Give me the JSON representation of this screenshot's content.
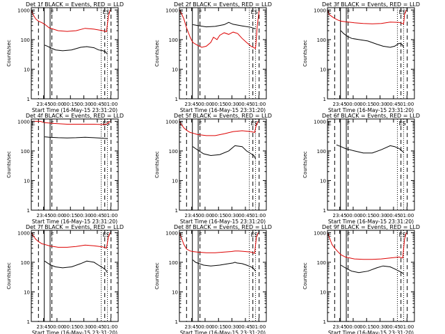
{
  "figure": {
    "x_tick_labels": [
      "23:45",
      "00:00",
      "00:15",
      "00:30",
      "00:45",
      "01:00"
    ],
    "y_tick_labels": [
      "1",
      "10",
      "100",
      "1000"
    ],
    "ylabel": "Counts/sec",
    "xlabel": "Start Time (16-May-15 23:31:20)",
    "marker_labels": [
      "E",
      "F",
      "ES"
    ],
    "black_color": "#000000",
    "red_color": "#dd0000"
  },
  "chart_data": [
    {
      "type": "line",
      "title": "Det 1f BLACK = Events, RED = LLD",
      "xlabel": "Start Time (16-May-15 23:31:20)",
      "ylabel": "Counts/sec",
      "x_unit": "minutes after 23:31:20",
      "xlim": [
        0,
        97
      ],
      "ylim": [
        1,
        1200
      ],
      "yscale": "log",
      "lld": true,
      "markers": [
        "E",
        "F",
        "ES"
      ],
      "series": [
        {
          "name": "Events",
          "color": "#000000",
          "x": [
            15,
            18,
            22,
            27,
            35,
            45,
            55,
            62,
            70,
            75,
            80,
            83,
            85
          ],
          "values": [
            65,
            60,
            52,
            45,
            42,
            45,
            55,
            58,
            53,
            45,
            42,
            38,
            32
          ]
        },
        {
          "name": "LLD",
          "color": "#dd0000",
          "x": [
            0,
            2,
            5,
            8,
            12,
            15,
            20,
            30,
            40,
            50,
            60,
            70,
            80,
            84,
            86,
            88
          ],
          "values": [
            1000,
            700,
            500,
            420,
            370,
            330,
            250,
            200,
            190,
            200,
            240,
            225,
            200,
            185,
            600,
            1000
          ]
        }
      ]
    },
    {
      "type": "line",
      "title": "Det 2f BLACK = Events, RED = LLD",
      "xlabel": "Start Time (16-May-15 23:31:20)",
      "ylabel": "Counts/sec",
      "x_unit": "minutes after 23:31:20",
      "xlim": [
        0,
        97
      ],
      "ylim": [
        1,
        1200
      ],
      "yscale": "log",
      "lld": true,
      "markers": [
        "E",
        "F",
        "ES"
      ],
      "series": [
        {
          "name": "Events",
          "color": "#000000",
          "x": [
            15,
            20,
            30,
            40,
            50,
            55,
            60,
            70,
            80,
            85
          ],
          "values": [
            320,
            300,
            270,
            280,
            320,
            380,
            330,
            290,
            260,
            230
          ]
        },
        {
          "name": "LLD",
          "color": "#dd0000",
          "x": [
            0,
            2,
            5,
            8,
            12,
            15,
            20,
            25,
            30,
            35,
            38,
            42,
            45,
            50,
            55,
            60,
            65,
            70,
            75,
            80,
            85,
            87,
            89
          ],
          "values": [
            1000,
            800,
            500,
            250,
            120,
            80,
            65,
            55,
            60,
            80,
            120,
            100,
            140,
            170,
            150,
            180,
            160,
            110,
            80,
            60,
            50,
            300,
            1000
          ]
        }
      ]
    },
    {
      "type": "line",
      "title": "Det 3f BLACK = Events, RED = LLD",
      "xlabel": "Start Time (16-May-15 23:31:20)",
      "ylabel": "Counts/sec",
      "x_unit": "minutes after 23:31:20",
      "xlim": [
        0,
        97
      ],
      "ylim": [
        1,
        1200
      ],
      "yscale": "log",
      "lld": true,
      "markers": [
        "E",
        "F",
        "ES"
      ],
      "series": [
        {
          "name": "Events",
          "color": "#000000",
          "x": [
            15,
            18,
            22,
            27,
            35,
            45,
            55,
            62,
            70,
            75,
            80,
            83,
            85
          ],
          "values": [
            200,
            160,
            130,
            110,
            100,
            90,
            70,
            60,
            55,
            60,
            75,
            70,
            55
          ]
        },
        {
          "name": "LLD",
          "color": "#dd0000",
          "x": [
            0,
            2,
            5,
            8,
            12,
            15,
            20,
            30,
            40,
            50,
            60,
            70,
            80,
            85,
            86,
            88
          ],
          "values": [
            1000,
            700,
            600,
            520,
            450,
            420,
            400,
            370,
            350,
            340,
            350,
            390,
            380,
            340,
            700,
            1000
          ]
        }
      ]
    },
    {
      "type": "line",
      "title": "Det 4f BLACK = Events, RED = LLD",
      "xlabel": "Start Time (16-May-15 23:31:20)",
      "ylabel": "Counts/sec",
      "x_unit": "minutes after 23:31:20",
      "xlim": [
        0,
        97
      ],
      "ylim": [
        1,
        1200
      ],
      "yscale": "log",
      "lld": true,
      "markers": [
        "E",
        "F",
        "ES"
      ],
      "series": [
        {
          "name": "Events",
          "color": "#000000",
          "x": [
            15,
            20,
            30,
            40,
            50,
            60,
            70,
            80,
            85
          ],
          "values": [
            300,
            290,
            280,
            275,
            280,
            290,
            280,
            270,
            260
          ]
        },
        {
          "name": "LLD",
          "color": "#dd0000",
          "x": [
            0,
            2,
            4,
            6,
            10,
            15,
            25,
            40,
            55,
            70,
            80,
            84,
            86,
            88
          ],
          "values": [
            1000,
            1000,
            1000,
            1000,
            1000,
            900,
            850,
            800,
            800,
            800,
            780,
            800,
            900,
            1000
          ]
        }
      ]
    },
    {
      "type": "line",
      "title": "Det 5f BLACK = Events, RED = LLD",
      "xlabel": "Start Time (16-May-15 23:31:20)",
      "ylabel": "Counts/sec",
      "x_unit": "minutes after 23:31:20",
      "xlim": [
        0,
        97
      ],
      "ylim": [
        1,
        1200
      ],
      "yscale": "log",
      "lld": true,
      "markers": [
        "E",
        "F",
        "ES"
      ],
      "series": [
        {
          "name": "Events",
          "color": "#000000",
          "x": [
            15,
            18,
            22,
            27,
            35,
            45,
            55,
            62,
            70,
            75,
            80,
            83,
            85
          ],
          "values": [
            140,
            120,
            100,
            80,
            70,
            75,
            100,
            150,
            140,
            100,
            80,
            70,
            55
          ]
        },
        {
          "name": "LLD",
          "color": "#dd0000",
          "x": [
            0,
            2,
            5,
            8,
            12,
            15,
            20,
            30,
            40,
            50,
            60,
            70,
            80,
            84,
            86,
            88
          ],
          "values": [
            1000,
            800,
            600,
            500,
            420,
            400,
            360,
            330,
            330,
            380,
            450,
            480,
            450,
            420,
            800,
            1000
          ]
        }
      ]
    },
    {
      "type": "line",
      "title": "Det 6f BLACK = Events, RED = LLD",
      "xlabel": "Start Time (16-May-15 23:31:20)",
      "ylabel": "Counts/sec",
      "x_unit": "minutes after 23:31:20",
      "xlim": [
        0,
        97
      ],
      "ylim": [
        1,
        1200
      ],
      "yscale": "log",
      "lld": false,
      "markers": [
        "E",
        "F",
        "ES"
      ],
      "series": [
        {
          "name": "Events",
          "color": "#000000",
          "x": [
            10,
            15,
            20,
            30,
            40,
            50,
            60,
            70,
            75,
            80,
            85
          ],
          "values": [
            160,
            140,
            120,
            100,
            85,
            85,
            110,
            150,
            140,
            120,
            90
          ]
        }
      ]
    },
    {
      "type": "line",
      "title": "Det 7f BLACK = Events, RED = LLD",
      "xlabel": "Start Time (16-May-15 23:31:20)",
      "ylabel": "Counts/sec",
      "x_unit": "minutes after 23:31:20",
      "xlim": [
        0,
        97
      ],
      "ylim": [
        1,
        1200
      ],
      "yscale": "log",
      "lld": true,
      "markers": [
        "E",
        "F",
        "ES"
      ],
      "series": [
        {
          "name": "Events",
          "color": "#000000",
          "x": [
            15,
            18,
            22,
            27,
            35,
            45,
            55,
            62,
            70,
            75,
            80,
            83,
            85
          ],
          "values": [
            110,
            95,
            80,
            70,
            65,
            70,
            90,
            110,
            100,
            80,
            65,
            55,
            45
          ]
        },
        {
          "name": "LLD",
          "color": "#dd0000",
          "x": [
            0,
            2,
            5,
            8,
            12,
            15,
            20,
            30,
            40,
            50,
            60,
            70,
            80,
            84,
            86,
            88
          ],
          "values": [
            1000,
            800,
            600,
            500,
            420,
            400,
            360,
            320,
            320,
            340,
            380,
            360,
            330,
            300,
            700,
            1000
          ]
        }
      ]
    },
    {
      "type": "line",
      "title": "Det 8f BLACK = Events, RED = LLD",
      "xlabel": "Start Time (16-May-15 23:31:20)",
      "ylabel": "Counts/sec",
      "x_unit": "minutes after 23:31:20",
      "xlim": [
        0,
        97
      ],
      "ylim": [
        1,
        1200
      ],
      "yscale": "log",
      "lld": true,
      "markers": [
        "E",
        "F",
        "ES"
      ],
      "series": [
        {
          "name": "Events",
          "color": "#000000",
          "x": [
            15,
            18,
            22,
            27,
            35,
            45,
            55,
            60,
            62,
            64,
            70,
            75,
            80,
            83,
            85
          ],
          "values": [
            120,
            100,
            90,
            80,
            75,
            80,
            90,
            95,
            100,
            95,
            90,
            80,
            70,
            60,
            50
          ]
        },
        {
          "name": "LLD",
          "color": "#dd0000",
          "x": [
            0,
            2,
            5,
            8,
            12,
            15,
            20,
            30,
            40,
            50,
            58,
            62,
            66,
            70,
            80,
            84,
            86,
            88
          ],
          "values": [
            1000,
            700,
            400,
            280,
            240,
            230,
            220,
            210,
            210,
            220,
            230,
            240,
            240,
            235,
            220,
            200,
            700,
            1000
          ]
        }
      ]
    },
    {
      "type": "line",
      "title": "Det 9f BLACK = Events, RED = LLD",
      "xlabel": "Start Time (16-May-15 23:31:20)",
      "ylabel": "Counts/sec",
      "x_unit": "minutes after 23:31:20",
      "xlim": [
        0,
        97
      ],
      "ylim": [
        1,
        1200
      ],
      "yscale": "log",
      "lld": true,
      "markers": [
        "E",
        "F",
        "ES"
      ],
      "series": [
        {
          "name": "Events",
          "color": "#000000",
          "x": [
            15,
            18,
            22,
            27,
            35,
            45,
            55,
            62,
            70,
            75,
            80,
            83,
            85
          ],
          "values": [
            80,
            70,
            60,
            50,
            45,
            50,
            65,
            75,
            70,
            60,
            50,
            45,
            40
          ]
        },
        {
          "name": "LLD",
          "color": "#dd0000",
          "x": [
            0,
            2,
            5,
            8,
            12,
            15,
            20,
            30,
            40,
            50,
            60,
            70,
            80,
            84,
            86,
            88
          ],
          "values": [
            1000,
            700,
            400,
            300,
            220,
            180,
            150,
            130,
            125,
            125,
            130,
            140,
            150,
            140,
            600,
            1000
          ]
        }
      ]
    }
  ]
}
